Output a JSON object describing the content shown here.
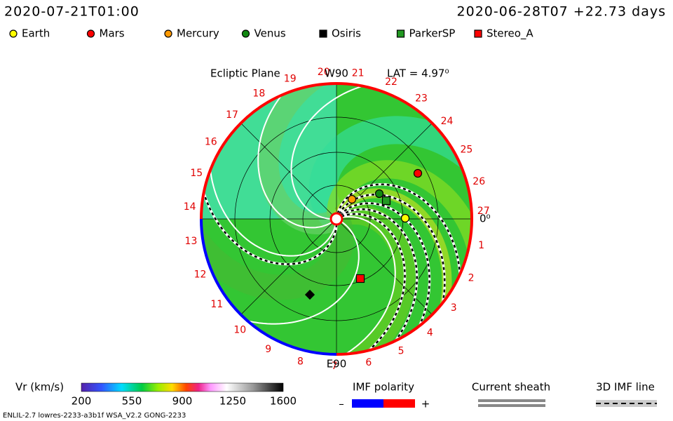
{
  "header": {
    "timestamp": "2020-07-21T01:00",
    "run_info": "2020-06-28T07 +22.73 days"
  },
  "legend": [
    {
      "label": "Earth",
      "color": "#ffff00",
      "shape": "circle"
    },
    {
      "label": "Mars",
      "color": "#ff0000",
      "shape": "circle"
    },
    {
      "label": "Mercury",
      "color": "#ff9900",
      "shape": "circle"
    },
    {
      "label": "Venus",
      "color": "#118811",
      "shape": "circle"
    },
    {
      "label": "Osiris",
      "color": "#000000",
      "shape": "square"
    },
    {
      "label": "ParkerSP",
      "color": "#229922",
      "shape": "square"
    },
    {
      "label": "Stereo_A",
      "color": "#ff0000",
      "shape": "square"
    }
  ],
  "plot": {
    "title": "Ecliptic Plane",
    "top_label": "W90",
    "lat": "LAT = 4.97⁰",
    "right_label": "0⁰",
    "bottom_label": "E90",
    "days": [
      1,
      2,
      3,
      4,
      5,
      6,
      7,
      8,
      9,
      10,
      11,
      12,
      13,
      14,
      15,
      16,
      17,
      18,
      19,
      20,
      21,
      22,
      23,
      24,
      25,
      26,
      27
    ]
  },
  "colorbar": {
    "label": "Vr (km/s)",
    "ticks": [
      200,
      550,
      900,
      1250,
      1600
    ]
  },
  "imf_polarity": {
    "title": "IMF polarity",
    "minus": "–",
    "plus": "+"
  },
  "current_sheath": {
    "title": "Current sheath"
  },
  "imf_line": {
    "title": "3D IMF line"
  },
  "footer": "ENLIL-2.7 lowres-2233-a3b1f WSA_V2.2 GONG-2233"
}
